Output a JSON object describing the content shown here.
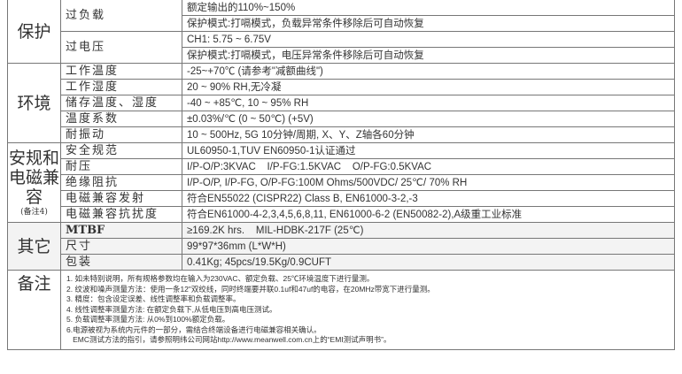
{
  "protection": {
    "group": "保护",
    "overload": {
      "label": "过负载",
      "values": [
        "额定输出的110%~150%",
        "保护模式:打嗝模式，负载异常条件移除后可自动恢复"
      ]
    },
    "overvoltage": {
      "label": "过电压",
      "values": [
        "CH1: 5.75 ~ 6.75V",
        "保护模式:打嗝模式，电压异常条件移除后可自动恢复"
      ]
    }
  },
  "environment": {
    "group": "环境",
    "rows": [
      {
        "label": "工作温度",
        "value": "-25~+70℃ (请参考\"减额曲线\")"
      },
      {
        "label": "工作湿度",
        "value": "20 ~ 90% RH,无冷凝"
      },
      {
        "label": "储存温度、湿度",
        "value": "-40 ~ +85℃, 10 ~ 95% RH"
      },
      {
        "label": "温度系数",
        "value": "±0.03%/℃ (0 ~ 50℃) (+5V)"
      },
      {
        "label": "耐振动",
        "value": "10 ~ 500Hz, 5G 10分钟/周期, X、Y、Z轴各60分钟"
      }
    ]
  },
  "safety": {
    "group": "安规和电磁兼容",
    "note": "(备注4)",
    "rows": [
      {
        "label": "安全规范",
        "value": "UL60950-1,TUV EN60950-1认证通过"
      },
      {
        "label": "耐压",
        "value": "I/P-O/P:3KVAC    I/P-FG:1.5KVAC    O/P-FG:0.5KVAC"
      },
      {
        "label": "绝缘阻抗",
        "value": "I/P-O/P, I/P-FG, O/P-FG:100M Ohms/500VDC/ 25℃/ 70% RH"
      },
      {
        "label": "电磁兼容发射",
        "value": "符合EN55022 (CISPR22) Class B, EN61000-3-2,-3"
      },
      {
        "label": "电磁兼容抗扰度",
        "value": "符合EN61000-4-2,3,4,5,6,8,11, EN61000-6-2 (EN50082-2),A级重工业标准"
      }
    ]
  },
  "other": {
    "group": "其它",
    "rows": [
      {
        "label": "MTBF",
        "value": "≥169.2K hrs.    MIL-HDBK-217F (25℃)"
      },
      {
        "label": "尺寸",
        "value": "99*97*36mm (L*W*H)"
      },
      {
        "label": "包装",
        "value": "0.41Kg; 45pcs/19.5Kg/0.9CUFT"
      }
    ]
  },
  "remarks": {
    "group": "备注",
    "lines": [
      "1. 如未特别说明，所有规格参数均在输入为230VAC、额定负载、25℃环境温度下进行量测。",
      "2. 纹波和噪声测量方法：使用一条12\"双绞线，同时终端要并联0.1uf和47uf的电容，在20MHz带宽下进行量测。",
      "3. 精度：包含设定误差、线性调整率和负载调整率。",
      "4. 线性调整率测量方法: 在额定负载下,从低电压到高电压测试。",
      "5. 负载调整率测量方法: 从0%到100%额定负载。",
      "6.电源被视为系统内元件的一部分，需结合终端设备进行电磁兼容相关确认。",
      "   EMC测试方法的指引，请参照明纬公司网站http://www.meanwell.com.cn上的“EMI测试声明书”。"
    ]
  }
}
